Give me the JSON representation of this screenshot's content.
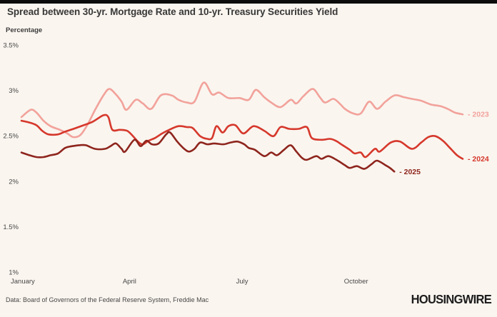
{
  "page": {
    "title": "Spread between 30-yr. Mortgage Rate and 10-yr. Treasury Securities Yield",
    "y_axis_title": "Percentage",
    "footer_source": "Data: Board of Governors of the Federal Reserve System, Freddie Mac",
    "brand": "HOUSINGWIRE",
    "background_color": "#faf5ef",
    "top_bar_color": "#0c0c0c"
  },
  "chart_data": {
    "type": "line",
    "title": "Spread between 30-yr. Mortgage Rate and 10-yr. Treasury Securities Yield",
    "ylabel": "Percentage",
    "xlabel": "",
    "ylim": [
      1,
      3.5
    ],
    "grid": false,
    "legend_position": "line-end-labels",
    "y_ticks": [
      {
        "value": 3.5,
        "label": "3.5%"
      },
      {
        "value": 3.0,
        "label": "3%"
      },
      {
        "value": 2.5,
        "label": "2.5%"
      },
      {
        "value": 2.0,
        "label": "2%"
      },
      {
        "value": 1.5,
        "label": "1.5%"
      },
      {
        "value": 1.0,
        "label": "1%"
      }
    ],
    "x_ticks": [
      {
        "position": 0.0,
        "label": "January"
      },
      {
        "position": 0.247,
        "label": "April"
      },
      {
        "position": 0.497,
        "label": "July"
      },
      {
        "position": 0.735,
        "label": "October"
      }
    ],
    "series": [
      {
        "name": "2023",
        "label": "- 2023",
        "color": "#f2a29b",
        "points": [
          [
            0.0,
            2.71
          ],
          [
            0.021,
            2.79
          ],
          [
            0.034,
            2.76
          ],
          [
            0.05,
            2.67
          ],
          [
            0.066,
            2.61
          ],
          [
            0.087,
            2.57
          ],
          [
            0.104,
            2.53
          ],
          [
            0.117,
            2.49
          ],
          [
            0.133,
            2.51
          ],
          [
            0.149,
            2.62
          ],
          [
            0.167,
            2.79
          ],
          [
            0.186,
            2.95
          ],
          [
            0.199,
            3.02
          ],
          [
            0.214,
            2.96
          ],
          [
            0.227,
            2.88
          ],
          [
            0.238,
            2.79
          ],
          [
            0.259,
            2.9
          ],
          [
            0.275,
            2.86
          ],
          [
            0.294,
            2.8
          ],
          [
            0.316,
            2.95
          ],
          [
            0.34,
            2.95
          ],
          [
            0.356,
            2.9
          ],
          [
            0.375,
            2.87
          ],
          [
            0.392,
            2.88
          ],
          [
            0.413,
            3.09
          ],
          [
            0.432,
            2.96
          ],
          [
            0.448,
            2.98
          ],
          [
            0.469,
            2.92
          ],
          [
            0.494,
            2.92
          ],
          [
            0.515,
            2.9
          ],
          [
            0.531,
            3.01
          ],
          [
            0.55,
            2.93
          ],
          [
            0.566,
            2.87
          ],
          [
            0.587,
            2.82
          ],
          [
            0.61,
            2.9
          ],
          [
            0.623,
            2.86
          ],
          [
            0.639,
            2.94
          ],
          [
            0.66,
            3.02
          ],
          [
            0.676,
            2.93
          ],
          [
            0.688,
            2.87
          ],
          [
            0.707,
            2.91
          ],
          [
            0.723,
            2.85
          ],
          [
            0.733,
            2.8
          ],
          [
            0.752,
            2.75
          ],
          [
            0.769,
            2.75
          ],
          [
            0.788,
            2.88
          ],
          [
            0.806,
            2.8
          ],
          [
            0.825,
            2.88
          ],
          [
            0.846,
            2.95
          ],
          [
            0.866,
            2.93
          ],
          [
            0.885,
            2.91
          ],
          [
            0.906,
            2.89
          ],
          [
            0.927,
            2.85
          ],
          [
            0.95,
            2.83
          ],
          [
            0.966,
            2.8
          ],
          [
            0.982,
            2.76
          ],
          [
            1.0,
            2.74
          ]
        ]
      },
      {
        "name": "2024",
        "label": "- 2024",
        "color": "#d6382c",
        "points": [
          [
            0.0,
            2.67
          ],
          [
            0.018,
            2.65
          ],
          [
            0.034,
            2.62
          ],
          [
            0.047,
            2.56
          ],
          [
            0.061,
            2.52
          ],
          [
            0.083,
            2.52
          ],
          [
            0.099,
            2.55
          ],
          [
            0.118,
            2.58
          ],
          [
            0.141,
            2.62
          ],
          [
            0.162,
            2.66
          ],
          [
            0.186,
            2.73
          ],
          [
            0.197,
            2.71
          ],
          [
            0.206,
            2.57
          ],
          [
            0.223,
            2.57
          ],
          [
            0.239,
            2.56
          ],
          [
            0.251,
            2.51
          ],
          [
            0.264,
            2.44
          ],
          [
            0.275,
            2.41
          ],
          [
            0.288,
            2.45
          ],
          [
            0.303,
            2.48
          ],
          [
            0.319,
            2.53
          ],
          [
            0.335,
            2.57
          ],
          [
            0.356,
            2.61
          ],
          [
            0.375,
            2.6
          ],
          [
            0.388,
            2.59
          ],
          [
            0.405,
            2.5
          ],
          [
            0.421,
            2.47
          ],
          [
            0.432,
            2.48
          ],
          [
            0.442,
            2.61
          ],
          [
            0.456,
            2.54
          ],
          [
            0.469,
            2.61
          ],
          [
            0.485,
            2.62
          ],
          [
            0.503,
            2.53
          ],
          [
            0.526,
            2.61
          ],
          [
            0.55,
            2.56
          ],
          [
            0.571,
            2.5
          ],
          [
            0.587,
            2.6
          ],
          [
            0.607,
            2.58
          ],
          [
            0.628,
            2.58
          ],
          [
            0.647,
            2.6
          ],
          [
            0.658,
            2.48
          ],
          [
            0.68,
            2.46
          ],
          [
            0.699,
            2.47
          ],
          [
            0.712,
            2.45
          ],
          [
            0.728,
            2.4
          ],
          [
            0.744,
            2.35
          ],
          [
            0.755,
            2.31
          ],
          [
            0.769,
            2.32
          ],
          [
            0.78,
            2.27
          ],
          [
            0.801,
            2.36
          ],
          [
            0.812,
            2.33
          ],
          [
            0.837,
            2.43
          ],
          [
            0.858,
            2.44
          ],
          [
            0.885,
            2.36
          ],
          [
            0.906,
            2.43
          ],
          [
            0.922,
            2.49
          ],
          [
            0.938,
            2.5
          ],
          [
            0.955,
            2.45
          ],
          [
            0.971,
            2.37
          ],
          [
            0.987,
            2.29
          ],
          [
            1.0,
            2.25
          ]
        ]
      },
      {
        "name": "2025",
        "label": "- 2025",
        "color": "#8e251d",
        "points": [
          [
            0.0,
            2.32
          ],
          [
            0.018,
            2.29
          ],
          [
            0.034,
            2.27
          ],
          [
            0.05,
            2.27
          ],
          [
            0.066,
            2.29
          ],
          [
            0.083,
            2.31
          ],
          [
            0.099,
            2.37
          ],
          [
            0.115,
            2.39
          ],
          [
            0.131,
            2.4
          ],
          [
            0.146,
            2.4
          ],
          [
            0.167,
            2.36
          ],
          [
            0.189,
            2.36
          ],
          [
            0.202,
            2.39
          ],
          [
            0.214,
            2.42
          ],
          [
            0.227,
            2.36
          ],
          [
            0.235,
            2.33
          ],
          [
            0.256,
            2.46
          ],
          [
            0.27,
            2.39
          ],
          [
            0.283,
            2.45
          ],
          [
            0.296,
            2.41
          ],
          [
            0.311,
            2.42
          ],
          [
            0.328,
            2.52
          ],
          [
            0.337,
            2.54
          ],
          [
            0.353,
            2.44
          ],
          [
            0.369,
            2.36
          ],
          [
            0.38,
            2.33
          ],
          [
            0.392,
            2.36
          ],
          [
            0.405,
            2.43
          ],
          [
            0.421,
            2.41
          ],
          [
            0.437,
            2.42
          ],
          [
            0.458,
            2.41
          ],
          [
            0.474,
            2.43
          ],
          [
            0.49,
            2.44
          ],
          [
            0.505,
            2.41
          ],
          [
            0.515,
            2.37
          ],
          [
            0.529,
            2.35
          ],
          [
            0.55,
            2.28
          ],
          [
            0.566,
            2.32
          ],
          [
            0.579,
            2.29
          ],
          [
            0.595,
            2.35
          ],
          [
            0.61,
            2.4
          ],
          [
            0.623,
            2.33
          ],
          [
            0.636,
            2.26
          ],
          [
            0.647,
            2.24
          ],
          [
            0.668,
            2.28
          ],
          [
            0.68,
            2.25
          ],
          [
            0.696,
            2.28
          ],
          [
            0.717,
            2.23
          ],
          [
            0.733,
            2.18
          ],
          [
            0.744,
            2.15
          ],
          [
            0.76,
            2.17
          ],
          [
            0.777,
            2.14
          ],
          [
            0.793,
            2.19
          ],
          [
            0.806,
            2.23
          ],
          [
            0.825,
            2.18
          ],
          [
            0.835,
            2.15
          ],
          [
            0.845,
            2.11
          ]
        ]
      }
    ]
  }
}
